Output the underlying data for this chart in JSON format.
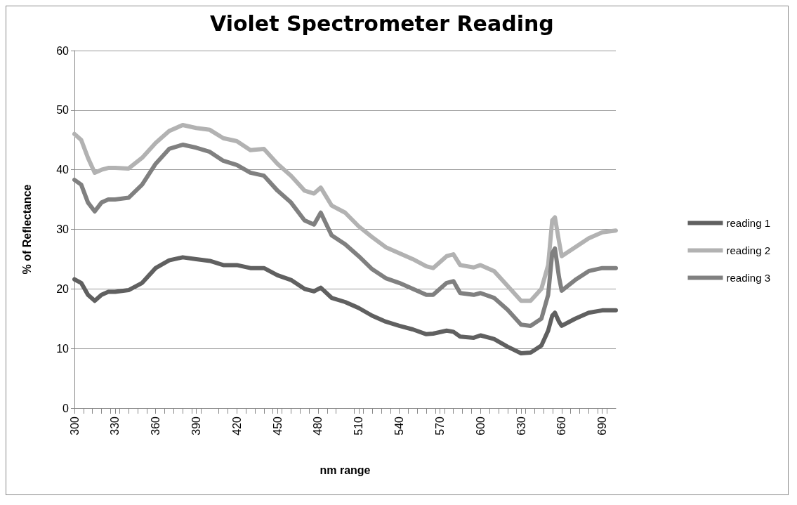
{
  "chart_data": {
    "type": "line",
    "title": "Violet Spectrometer Reading",
    "xlabel": "nm range",
    "ylabel": "% of Reflectance",
    "x": [
      300,
      305,
      310,
      315,
      320,
      325,
      330,
      340,
      350,
      360,
      370,
      380,
      390,
      400,
      410,
      420,
      430,
      440,
      450,
      460,
      470,
      477,
      482,
      490,
      500,
      510,
      520,
      530,
      540,
      550,
      560,
      565,
      575,
      580,
      585,
      595,
      600,
      610,
      620,
      630,
      637,
      645,
      650,
      653,
      655,
      658,
      660,
      670,
      680,
      690,
      700
    ],
    "series": [
      {
        "name": "reading 1",
        "color": "#606060",
        "values": [
          21.6,
          21,
          19,
          18,
          19,
          19.5,
          19.5,
          19.8,
          21,
          23.5,
          24.8,
          25.3,
          25,
          24.7,
          24,
          24,
          23.5,
          23.5,
          22.3,
          21.5,
          20,
          19.6,
          20.2,
          18.5,
          17.8,
          16.8,
          15.5,
          14.5,
          13.8,
          13.2,
          12.4,
          12.5,
          13,
          12.8,
          12,
          11.8,
          12.2,
          11.6,
          10.3,
          9.2,
          9.3,
          10.5,
          13,
          15.5,
          16,
          14.5,
          13.8,
          15,
          16,
          16.4,
          16.4
        ]
      },
      {
        "name": "reading 2",
        "color": "#b2b2b2",
        "values": [
          46,
          45,
          42,
          39.5,
          40,
          40.3,
          40.3,
          40.2,
          42,
          44.5,
          46.5,
          47.5,
          47,
          46.7,
          45.3,
          44.8,
          43.3,
          43.5,
          41,
          39,
          36.5,
          36,
          37,
          34,
          32.8,
          30.5,
          28.7,
          27,
          26,
          25,
          23.8,
          23.5,
          25.5,
          25.8,
          24,
          23.6,
          24,
          23,
          20.5,
          18,
          18,
          20,
          24,
          31.5,
          32,
          28,
          25.5,
          27,
          28.5,
          29.5,
          29.8
        ]
      },
      {
        "name": "reading 3",
        "color": "#808080",
        "values": [
          38.3,
          37.5,
          34.5,
          33,
          34.5,
          35,
          35,
          35.3,
          37.5,
          41,
          43.5,
          44.2,
          43.7,
          43,
          41.5,
          40.8,
          39.5,
          39,
          36.5,
          34.5,
          31.5,
          30.8,
          32.8,
          29,
          27.5,
          25.5,
          23.3,
          21.8,
          21,
          20,
          19,
          19,
          21,
          21.3,
          19.3,
          19,
          19.3,
          18.5,
          16.5,
          14,
          13.8,
          15,
          19,
          26,
          26.8,
          22,
          19.7,
          21.5,
          23,
          23.5,
          23.5
        ]
      }
    ],
    "xlim": [
      300,
      700
    ],
    "xticks": [
      300,
      330,
      360,
      390,
      420,
      450,
      480,
      510,
      540,
      570,
      600,
      630,
      660,
      690
    ],
    "ylim": [
      0,
      60
    ],
    "yticks": [
      0,
      10,
      20,
      30,
      40,
      50,
      60
    ],
    "grid": "y",
    "legend": "right",
    "marker": "none",
    "line_style": "solid"
  }
}
